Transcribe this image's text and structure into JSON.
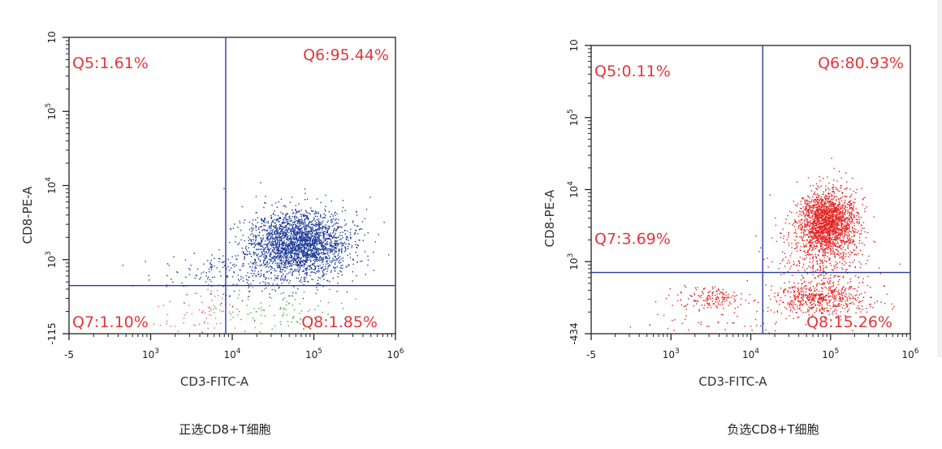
{
  "chart_data": [
    {
      "type": "scatter",
      "caption": "正选CD8+T细胞",
      "xlabel": "CD3-FITC-A",
      "ylabel": "CD8-PE-A",
      "x_ticks": [
        {
          "base": "-5",
          "exp": ""
        },
        {
          "base": "10",
          "exp": "3"
        },
        {
          "base": "10",
          "exp": "4"
        },
        {
          "base": "10",
          "exp": "5"
        },
        {
          "base": "10",
          "exp": "6"
        }
      ],
      "y_ticks": [
        {
          "base": "-115",
          "exp": ""
        },
        {
          "base": "10",
          "exp": "3"
        },
        {
          "base": "10",
          "exp": "4"
        },
        {
          "base": "10",
          "exp": "5"
        },
        {
          "base": "10",
          "exp": ""
        }
      ],
      "quadrants": [
        {
          "name": "Q5",
          "label": "Q5:1.61%",
          "percent": 1.61,
          "pos": "top-left"
        },
        {
          "name": "Q6",
          "label": "Q6:95.44%",
          "percent": 95.44,
          "pos": "top-right"
        },
        {
          "name": "Q7",
          "label": "Q7:1.10%",
          "percent": 1.1,
          "pos": "bottom-left"
        },
        {
          "name": "Q8",
          "label": "Q8:1.85%",
          "percent": 1.85,
          "pos": "bottom-right"
        }
      ],
      "gate": {
        "x_decades": 0.92,
        "y_decades": -0.35
      },
      "populations": [
        {
          "color": "#1f3d99",
          "cx": 1.82,
          "cy": 0.22,
          "sx": 0.3,
          "sy": 0.22,
          "n": 2600
        },
        {
          "color": "#1f3d99",
          "cx": 1.05,
          "cy": -0.18,
          "sx": 0.45,
          "sy": 0.15,
          "n": 220
        },
        {
          "color": "#3fae3f",
          "cx": 1.55,
          "cy": -0.7,
          "sx": 0.4,
          "sy": 0.18,
          "n": 110
        },
        {
          "color": "#e06a6a",
          "cx": 0.65,
          "cy": -0.72,
          "sx": 0.25,
          "sy": 0.18,
          "n": 70
        }
      ],
      "colors": {
        "axis": "#222222",
        "gate": "#2b3aa0",
        "label": "#e2373a"
      }
    },
    {
      "type": "scatter",
      "caption": "负选CD8+T细胞",
      "xlabel": "CD3-FITC-A",
      "ylabel": "CD8-PE-A",
      "x_ticks": [
        {
          "base": "-5",
          "exp": ""
        },
        {
          "base": "10",
          "exp": "3"
        },
        {
          "base": "10",
          "exp": "4"
        },
        {
          "base": "10",
          "exp": "5"
        },
        {
          "base": "10",
          "exp": "6"
        }
      ],
      "y_ticks": [
        {
          "base": "-434",
          "exp": ""
        },
        {
          "base": "10",
          "exp": "3"
        },
        {
          "base": "10",
          "exp": "4"
        },
        {
          "base": "10",
          "exp": "5"
        },
        {
          "base": "10",
          "exp": ""
        }
      ],
      "quadrants": [
        {
          "name": "Q5",
          "label": "Q5:0.11%",
          "percent": 0.11,
          "pos": "top-left"
        },
        {
          "name": "Q6",
          "label": "Q6:80.93%",
          "percent": 80.93,
          "pos": "top-right"
        },
        {
          "name": "Q7",
          "label": "Q7:3.69%",
          "percent": 3.69,
          "pos": "bottom-left"
        },
        {
          "name": "Q8",
          "label": "Q8:15.26%",
          "percent": 15.26,
          "pos": "bottom-right"
        }
      ],
      "gate": {
        "x_decades": 1.15,
        "y_decades": -0.15
      },
      "populations": [
        {
          "color": "#e32020",
          "cx": 1.95,
          "cy": 0.55,
          "sx": 0.18,
          "sy": 0.22,
          "n": 1900
        },
        {
          "color": "#e32020",
          "cx": 1.85,
          "cy": 0.0,
          "sx": 0.3,
          "sy": 0.35,
          "n": 420
        },
        {
          "color": "#e32020",
          "cx": 1.85,
          "cy": -0.5,
          "sx": 0.3,
          "sy": 0.12,
          "n": 520
        },
        {
          "color": "#e32020",
          "cx": 0.5,
          "cy": -0.5,
          "sx": 0.22,
          "sy": 0.08,
          "n": 160
        },
        {
          "color": "#e32020",
          "cx": 0.6,
          "cy": -0.85,
          "sx": 0.5,
          "sy": 0.08,
          "n": 40
        }
      ],
      "colors": {
        "axis": "#222222",
        "gate": "#2b3aa0",
        "label": "#e2373a"
      }
    }
  ]
}
